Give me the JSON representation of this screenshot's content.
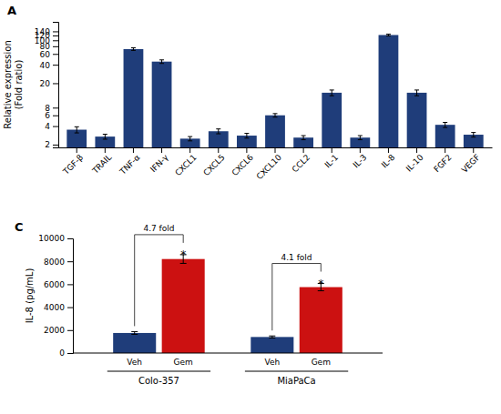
{
  "chart_data": [
    {
      "type": "bar",
      "title": "A",
      "categories": [
        "TGF-β",
        "TRAIL",
        "TNF-α",
        "IFN-γ",
        "CXCL1",
        "CXCL5",
        "CXCL6",
        "CXCL10",
        "CCL2",
        "IL-1",
        "IL-3",
        "IL-8",
        "IL-10",
        "FGF2",
        "VEGF"
      ],
      "values": [
        3.5,
        2.7,
        72,
        45,
        2.5,
        3.3,
        2.8,
        6.0,
        2.6,
        14,
        2.6,
        122,
        14,
        4.2,
        2.9
      ],
      "errors": [
        0.4,
        0.25,
        3.5,
        3.0,
        0.2,
        0.3,
        0.25,
        0.4,
        0.2,
        1.5,
        0.2,
        4.0,
        1.5,
        0.4,
        0.25
      ],
      "color": "#1f3d7a",
      "ylabel": "Relative expression\n(Fold ratio)",
      "log": "y",
      "ylim": [
        1.8,
        200
      ],
      "yticks": [
        2,
        4,
        6,
        8,
        20,
        40,
        60,
        80,
        100,
        120,
        140
      ]
    },
    {
      "type": "bar",
      "title": "C",
      "categories": [
        "Colo-357",
        "MiaPaCa"
      ],
      "series": [
        {
          "name": "Veh",
          "color": "#1f3d7a",
          "values": [
            1750,
            1400
          ],
          "errors": [
            120,
            90
          ]
        },
        {
          "name": "Gem",
          "color": "#cc1111",
          "values": [
            8200,
            5750
          ],
          "errors": [
            380,
            320
          ]
        }
      ],
      "ylabel": "IL-8 (pg/mL)",
      "ylim": [
        0,
        10000
      ],
      "yticks": [
        0,
        2000,
        4000,
        6000,
        8000,
        10000
      ],
      "annotations": [
        [
          "4.7 fold",
          "*"
        ],
        [
          "4.1 fold",
          "*"
        ]
      ]
    }
  ]
}
